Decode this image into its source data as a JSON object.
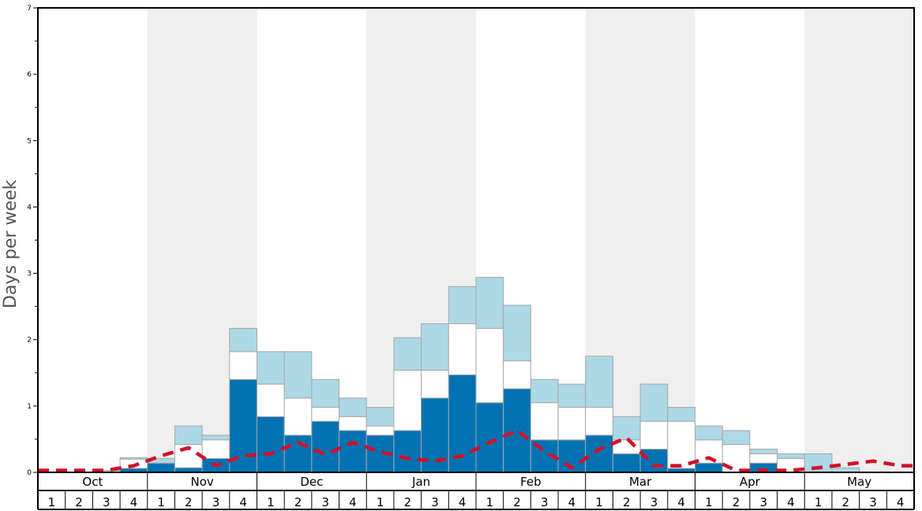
{
  "chart_data": {
    "type": "bar",
    "ylabel": "Days per week",
    "ylim": [
      0,
      7
    ],
    "yticks": [
      "0",
      "1",
      "2",
      "3",
      "4",
      "5",
      "6",
      "7"
    ],
    "months": [
      "Oct",
      "Nov",
      "Dec",
      "Jan",
      "Feb",
      "Mar",
      "Apr",
      "May"
    ],
    "week_labels": [
      "1",
      "2",
      "3",
      "4"
    ],
    "stacked": true,
    "categories": [
      "Oct 1",
      "Oct 2",
      "Oct 3",
      "Oct 4",
      "Nov 1",
      "Nov 2",
      "Nov 3",
      "Nov 4",
      "Dec 1",
      "Dec 2",
      "Dec 3",
      "Dec 4",
      "Jan 1",
      "Jan 2",
      "Jan 3",
      "Jan 4",
      "Feb 1",
      "Feb 2",
      "Feb 3",
      "Feb 4",
      "Mar 1",
      "Mar 2",
      "Mar 3",
      "Mar 4",
      "Apr 1",
      "Apr 2",
      "Apr 3",
      "Apr 4",
      "May 1",
      "May 2",
      "May 3",
      "May 4"
    ],
    "series": [
      {
        "color": "#0072b2",
        "values": [
          0,
          0,
          0,
          0.06,
          0.14,
          0.07,
          0.21,
          1.4,
          0.84,
          0.56,
          0.77,
          0.63,
          0.56,
          0.63,
          1.12,
          1.47,
          1.05,
          1.26,
          0.49,
          0.49,
          0.56,
          0.28,
          0.35,
          0.06,
          0.14,
          0,
          0.14,
          0,
          0,
          0,
          0,
          0
        ]
      },
      {
        "color": "#ffffff",
        "values": [
          0,
          0,
          0,
          0.14,
          0,
          0.35,
          0.28,
          0.42,
          0.49,
          0.56,
          0.21,
          0.21,
          0.14,
          0.91,
          0.42,
          0.77,
          1.12,
          0.42,
          0.56,
          0.49,
          0.42,
          0.21,
          0.42,
          0.71,
          0.35,
          0.42,
          0.14,
          0.21,
          0,
          0,
          0,
          0
        ]
      },
      {
        "color": "#add8e6",
        "values": [
          0,
          0,
          0.03,
          0.02,
          0.07,
          0.28,
          0.07,
          0.35,
          0.49,
          0.7,
          0.42,
          0.28,
          0.28,
          0.49,
          0.7,
          0.56,
          0.77,
          0.84,
          0.35,
          0.35,
          0.77,
          0.35,
          0.56,
          0.21,
          0.21,
          0.21,
          0.07,
          0.07,
          0.28,
          0.07,
          0,
          0
        ]
      }
    ],
    "line": {
      "color": "#d0112b",
      "style": "dashed",
      "values": [
        0.03,
        0.03,
        0.03,
        0.1,
        0.25,
        0.37,
        0.1,
        0.25,
        0.28,
        0.45,
        0.27,
        0.45,
        0.31,
        0.21,
        0.17,
        0.25,
        0.45,
        0.63,
        0.32,
        0.07,
        0.35,
        0.52,
        0.1,
        0.1,
        0.22,
        0.03,
        0.03,
        0.03,
        0.07,
        0.12,
        0.17,
        0.1
      ]
    }
  }
}
